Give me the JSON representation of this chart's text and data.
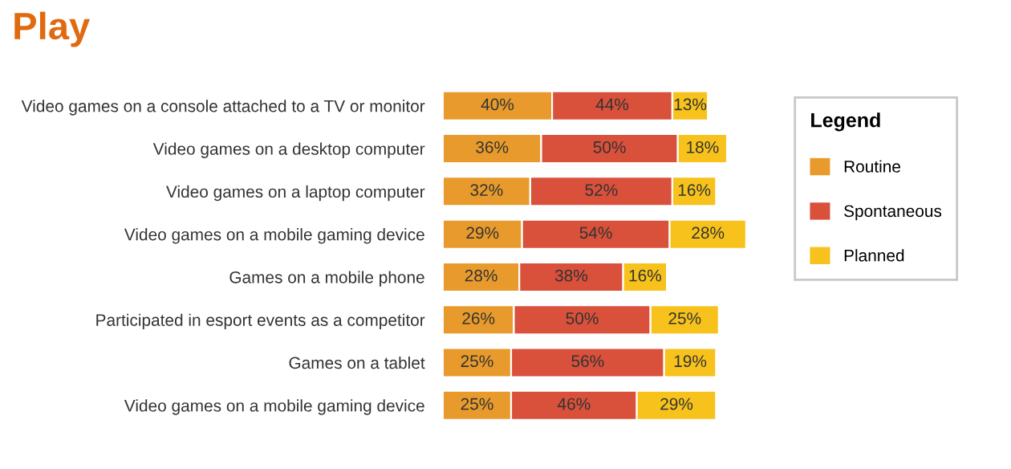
{
  "chart_data": {
    "type": "bar",
    "orientation": "horizontal",
    "stacked": true,
    "title": "Play",
    "legend_title": "Legend",
    "legend": "right",
    "tick_labels": "y",
    "categories": [
      "Video games on a console attached to a TV or monitor",
      "Video games on a desktop computer",
      "Video games on a laptop computer",
      "Video games on a mobile gaming device",
      "Games on a mobile phone",
      "Participated in esport events as a competitor",
      "Games on a tablet",
      "Video games on a mobile gaming device"
    ],
    "series": [
      {
        "name": "Routine",
        "color": "#e89b2c",
        "values": [
          40,
          36,
          32,
          29,
          28,
          26,
          25,
          25
        ],
        "value_labels": [
          "40%",
          "36%",
          "32%",
          "29%",
          "28%",
          "26%",
          "25%",
          "25%"
        ]
      },
      {
        "name": "Spontaneous",
        "color": "#d9503b",
        "values": [
          44,
          50,
          52,
          54,
          38,
          50,
          56,
          46
        ],
        "value_labels": [
          "44%",
          "50%",
          "52%",
          "54%",
          "38%",
          "50%",
          "56%",
          "46%"
        ]
      },
      {
        "name": "Planned",
        "color": "#f7c21b",
        "values": [
          13,
          18,
          16,
          28,
          16,
          25,
          19,
          29
        ],
        "value_labels": [
          "13%",
          "18%",
          "16%",
          "28%",
          "16%",
          "25%",
          "19%",
          "29%"
        ]
      }
    ]
  }
}
